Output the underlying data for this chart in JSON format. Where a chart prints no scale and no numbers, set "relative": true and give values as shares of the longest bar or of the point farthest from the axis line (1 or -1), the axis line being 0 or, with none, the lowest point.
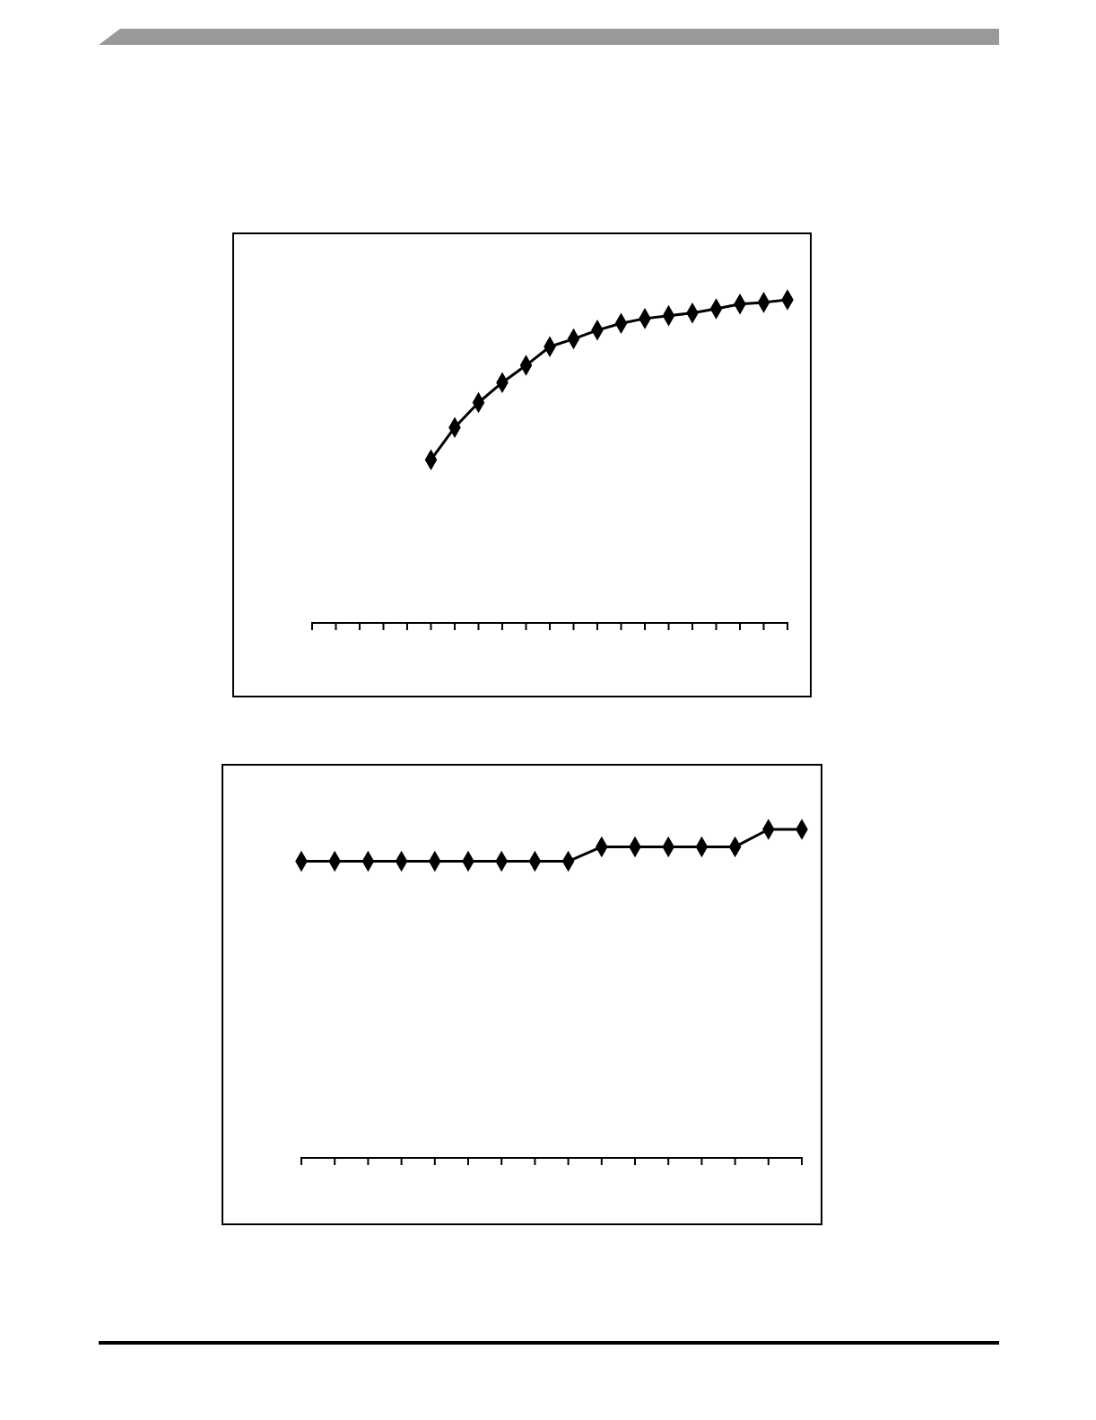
{
  "chart_data": [
    {
      "type": "line",
      "relative": true,
      "marker": "diamond",
      "line_style": "solid",
      "categories": [
        null,
        null,
        null,
        null,
        null,
        null,
        null,
        null,
        null,
        null,
        null,
        null,
        null,
        null,
        null,
        null,
        null,
        null,
        null,
        null,
        null
      ],
      "series": [
        {
          "color": "#000000",
          "values": [
            null,
            null,
            null,
            null,
            null,
            0.505,
            0.605,
            0.682,
            0.744,
            0.797,
            0.855,
            0.879,
            0.906,
            0.927,
            0.942,
            0.951,
            0.959,
            0.972,
            0.987,
            0.992,
            1
          ]
        }
      ]
    },
    {
      "type": "line",
      "relative": true,
      "marker": "diamond",
      "line_style": "solid",
      "categories": [
        null,
        null,
        null,
        null,
        null,
        null,
        null,
        null,
        null,
        null,
        null,
        null,
        null,
        null,
        null,
        null
      ],
      "series": [
        {
          "color": "#000000",
          "values": [
            0.903,
            0.903,
            0.903,
            0.903,
            0.903,
            0.903,
            0.903,
            0.903,
            0.903,
            0.947,
            0.947,
            0.947,
            0.947,
            0.947,
            1,
            1
          ]
        }
      ]
    }
  ]
}
